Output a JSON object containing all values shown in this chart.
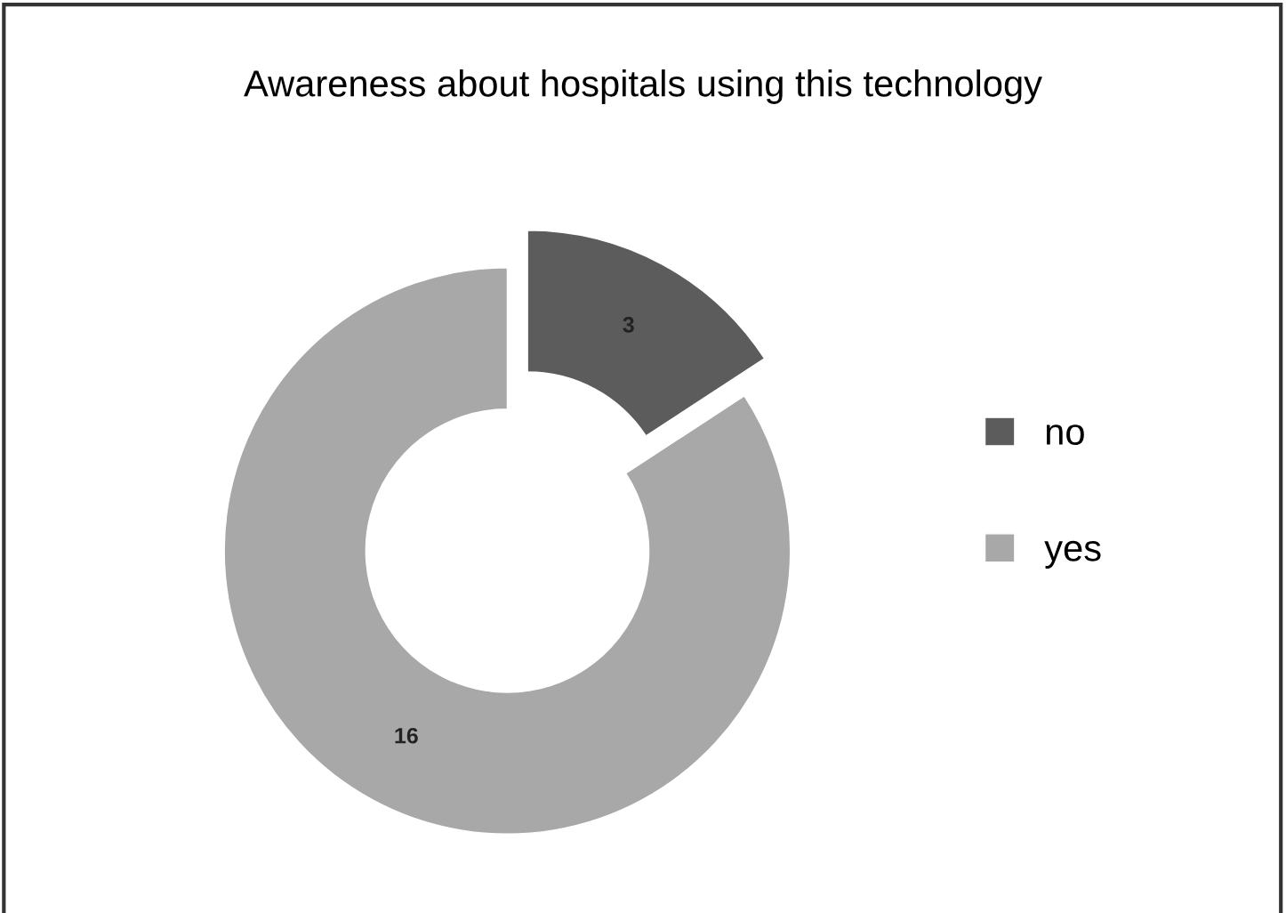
{
  "chart_data": {
    "type": "donut",
    "title": "Awareness about hospitals using this technology",
    "categories": [
      "no",
      "yes"
    ],
    "values": [
      3,
      16
    ],
    "colors": [
      "#5c5c5c",
      "#a8a8a8"
    ],
    "data_labels": true,
    "legend": "right"
  }
}
